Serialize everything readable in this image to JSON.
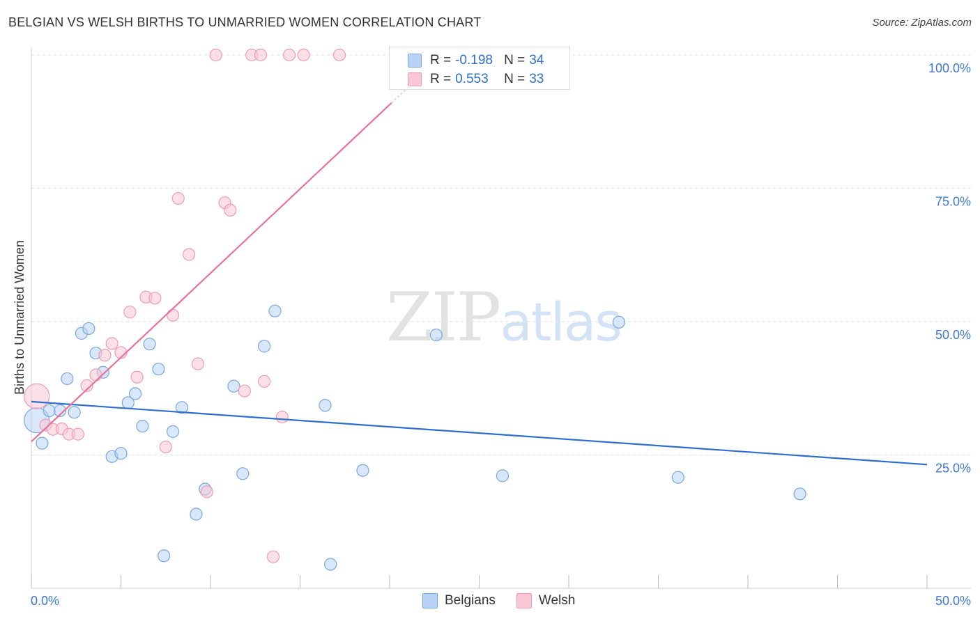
{
  "header": {
    "title": "BELGIAN VS WELSH BIRTHS TO UNMARRIED WOMEN CORRELATION CHART",
    "source": "Source: ZipAtlas.com"
  },
  "watermark": {
    "zip": "ZIP",
    "atlas": "atlas"
  },
  "legend": {
    "r_label": "R =",
    "n_label": "N =",
    "rows": [
      {
        "name": "Belgians",
        "r": "-0.198",
        "n": "34"
      },
      {
        "name": "Welsh",
        "r": "0.553",
        "n": "33"
      }
    ]
  },
  "colors": {
    "blue_fill": "#b8d3f5",
    "blue_stroke": "#7aa7e0",
    "blue_line": "#2d6fcc",
    "pink_fill": "#f9c6d6",
    "pink_stroke": "#ef9bb6",
    "pink_line": "#e8739a",
    "axis_text": "#3b78d8"
  },
  "chart_data": {
    "type": "scatter",
    "title": "BELGIAN VS WELSH BIRTHS TO UNMARRIED WOMEN CORRELATION CHART",
    "xlabel": "",
    "ylabel": "Births to Unmarried Women",
    "xlim": [
      0,
      50
    ],
    "ylim": [
      0,
      100
    ],
    "x_tick_labels": [
      "0.0%",
      "50.0%"
    ],
    "y_ticks": [
      25,
      50,
      75,
      100
    ],
    "y_tick_labels": [
      "25.0%",
      "50.0%",
      "75.0%",
      "100.0%"
    ],
    "grid": true,
    "series": [
      {
        "name": "Belgians",
        "r": -0.198,
        "n": 34,
        "trend": {
          "x": [
            0,
            50
          ],
          "y": [
            35.0,
            23.2
          ]
        },
        "points": [
          {
            "x": 0.3,
            "y": 31.5,
            "big": true
          },
          {
            "x": 0.6,
            "y": 27.2
          },
          {
            "x": 1.0,
            "y": 33.3
          },
          {
            "x": 1.6,
            "y": 33.3
          },
          {
            "x": 2.0,
            "y": 39.3
          },
          {
            "x": 2.4,
            "y": 33.0
          },
          {
            "x": 2.8,
            "y": 47.8
          },
          {
            "x": 3.2,
            "y": 48.7
          },
          {
            "x": 3.6,
            "y": 44.1
          },
          {
            "x": 4.0,
            "y": 40.5
          },
          {
            "x": 4.5,
            "y": 24.7
          },
          {
            "x": 5.0,
            "y": 25.3
          },
          {
            "x": 5.4,
            "y": 34.8
          },
          {
            "x": 5.8,
            "y": 36.5
          },
          {
            "x": 6.2,
            "y": 30.4
          },
          {
            "x": 6.6,
            "y": 45.8
          },
          {
            "x": 7.1,
            "y": 41.1
          },
          {
            "x": 7.4,
            "y": 6.1
          },
          {
            "x": 7.9,
            "y": 29.4
          },
          {
            "x": 8.4,
            "y": 33.9
          },
          {
            "x": 9.2,
            "y": 13.9
          },
          {
            "x": 9.7,
            "y": 18.6
          },
          {
            "x": 11.3,
            "y": 37.9
          },
          {
            "x": 11.8,
            "y": 21.5
          },
          {
            "x": 13.0,
            "y": 45.4
          },
          {
            "x": 13.6,
            "y": 52.0
          },
          {
            "x": 16.4,
            "y": 34.3
          },
          {
            "x": 16.7,
            "y": 4.5
          },
          {
            "x": 18.5,
            "y": 22.1
          },
          {
            "x": 22.6,
            "y": 47.5
          },
          {
            "x": 26.3,
            "y": 21.1
          },
          {
            "x": 32.8,
            "y": 49.9
          },
          {
            "x": 36.1,
            "y": 20.8
          },
          {
            "x": 42.9,
            "y": 17.7
          }
        ]
      },
      {
        "name": "Welsh",
        "r": 0.553,
        "n": 33,
        "trend": {
          "x": [
            0,
            20.1
          ],
          "y": [
            27.5,
            91.0
          ]
        },
        "points": [
          {
            "x": 0.3,
            "y": 36.0,
            "big": true
          },
          {
            "x": 0.8,
            "y": 30.6
          },
          {
            "x": 1.2,
            "y": 29.8
          },
          {
            "x": 1.7,
            "y": 29.9
          },
          {
            "x": 2.1,
            "y": 28.9
          },
          {
            "x": 2.6,
            "y": 28.9
          },
          {
            "x": 3.1,
            "y": 38.0
          },
          {
            "x": 3.6,
            "y": 40.0
          },
          {
            "x": 4.1,
            "y": 43.7
          },
          {
            "x": 4.5,
            "y": 45.9
          },
          {
            "x": 5.0,
            "y": 44.2
          },
          {
            "x": 5.5,
            "y": 51.8
          },
          {
            "x": 5.9,
            "y": 39.6
          },
          {
            "x": 6.4,
            "y": 54.6
          },
          {
            "x": 6.9,
            "y": 54.4
          },
          {
            "x": 7.5,
            "y": 26.5
          },
          {
            "x": 7.9,
            "y": 51.2
          },
          {
            "x": 8.2,
            "y": 73.1
          },
          {
            "x": 8.8,
            "y": 62.6
          },
          {
            "x": 9.3,
            "y": 42.1
          },
          {
            "x": 9.8,
            "y": 18.1
          },
          {
            "x": 10.3,
            "y": 100
          },
          {
            "x": 10.8,
            "y": 72.3
          },
          {
            "x": 11.1,
            "y": 70.9
          },
          {
            "x": 11.9,
            "y": 37.0
          },
          {
            "x": 12.3,
            "y": 100
          },
          {
            "x": 12.8,
            "y": 100
          },
          {
            "x": 13.0,
            "y": 38.8
          },
          {
            "x": 13.5,
            "y": 5.9
          },
          {
            "x": 14.0,
            "y": 32.1
          },
          {
            "x": 14.4,
            "y": 100
          },
          {
            "x": 15.2,
            "y": 100
          },
          {
            "x": 17.2,
            "y": 100
          }
        ]
      }
    ]
  }
}
